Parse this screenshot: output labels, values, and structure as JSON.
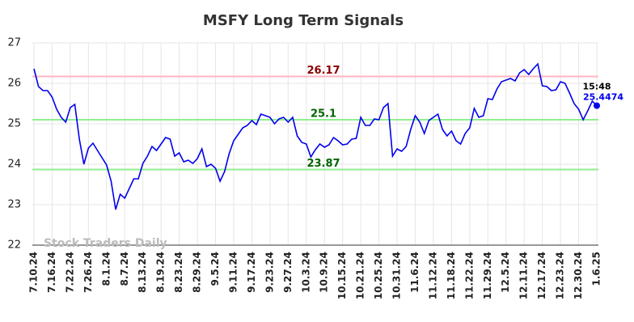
{
  "chart_data": {
    "type": "line",
    "title": "MSFY Long Term Signals",
    "watermark": "Stock Traders Daily",
    "categories": [
      "7.10.24",
      null,
      null,
      null,
      "7.16.24",
      null,
      null,
      null,
      "7.22.24",
      null,
      null,
      null,
      "7.26.24",
      null,
      null,
      null,
      "8.1.24",
      null,
      null,
      null,
      "8.7.24",
      null,
      null,
      null,
      "8.13.24",
      null,
      null,
      null,
      "8.19.24",
      null,
      null,
      null,
      "8.23.24",
      null,
      null,
      null,
      "8.29.24",
      null,
      null,
      null,
      "9.5.24",
      null,
      null,
      null,
      "9.11.24",
      null,
      null,
      null,
      "9.17.24",
      null,
      null,
      null,
      "9.23.24",
      null,
      null,
      null,
      "9.27.24",
      null,
      null,
      null,
      "10.3.24",
      null,
      null,
      null,
      "10.9.24",
      null,
      null,
      null,
      "10.15.24",
      null,
      null,
      null,
      "10.21.24",
      null,
      null,
      null,
      "10.25.24",
      null,
      null,
      null,
      "10.31.24",
      null,
      null,
      null,
      "11.6.24",
      null,
      null,
      null,
      "11.12.24",
      null,
      null,
      null,
      "11.18.24",
      null,
      null,
      null,
      "11.22.24",
      null,
      null,
      null,
      "11.29.24",
      null,
      null,
      null,
      "12.5.24",
      null,
      null,
      null,
      "12.11.24",
      null,
      null,
      null,
      "12.17.24",
      null,
      null,
      null,
      "12.23.24",
      null,
      null,
      null,
      "12.30.24",
      null,
      null,
      null,
      "1.6.25"
    ],
    "series": [
      {
        "name": "MSFY",
        "color": "#0000ee",
        "values": [
          26.36,
          25.92,
          25.82,
          25.82,
          25.66,
          25.36,
          25.16,
          25.04,
          25.4,
          25.48,
          24.62,
          24.0,
          24.4,
          24.52,
          24.34,
          24.16,
          23.98,
          23.58,
          22.88,
          23.26,
          23.16,
          23.4,
          23.64,
          23.64,
          24.02,
          24.2,
          24.44,
          24.34,
          24.5,
          24.66,
          24.62,
          24.2,
          24.28,
          24.06,
          24.1,
          24.02,
          24.14,
          24.38,
          23.94,
          24.0,
          23.9,
          23.58,
          23.82,
          24.26,
          24.58,
          24.74,
          24.9,
          24.96,
          25.08,
          24.98,
          25.24,
          25.2,
          25.16,
          25.0,
          25.12,
          25.16,
          25.04,
          25.16,
          24.7,
          24.54,
          24.5,
          24.18,
          24.36,
          24.5,
          24.42,
          24.48,
          24.66,
          24.58,
          24.48,
          24.5,
          24.62,
          24.64,
          25.16,
          24.96,
          24.96,
          25.12,
          25.1,
          25.4,
          25.5,
          24.2,
          24.38,
          24.32,
          24.44,
          24.86,
          25.2,
          25.04,
          24.76,
          25.08,
          25.16,
          25.24,
          24.86,
          24.7,
          24.82,
          24.58,
          24.5,
          24.76,
          24.9,
          25.38,
          25.16,
          25.2,
          25.62,
          25.6,
          25.86,
          26.04,
          26.08,
          26.12,
          26.06,
          26.26,
          26.34,
          26.22,
          26.36,
          26.48,
          25.94,
          25.92,
          25.82,
          25.84,
          26.04,
          26.0,
          25.76,
          25.5,
          25.36,
          25.1,
          25.32,
          25.56,
          25.4474
        ]
      }
    ],
    "last_time": "15:48",
    "hlines": [
      {
        "value": 26.17,
        "color": "#ffb6c1",
        "label_color": "#8b0000"
      },
      {
        "value": 25.1,
        "color": "#90ee90",
        "label_color": "#006400"
      },
      {
        "value": 23.87,
        "color": "#90ee90",
        "label_color": "#006400"
      }
    ],
    "ylim": [
      22,
      27
    ],
    "yticks": [
      22,
      23,
      24,
      25,
      26,
      27
    ],
    "grid": true
  }
}
